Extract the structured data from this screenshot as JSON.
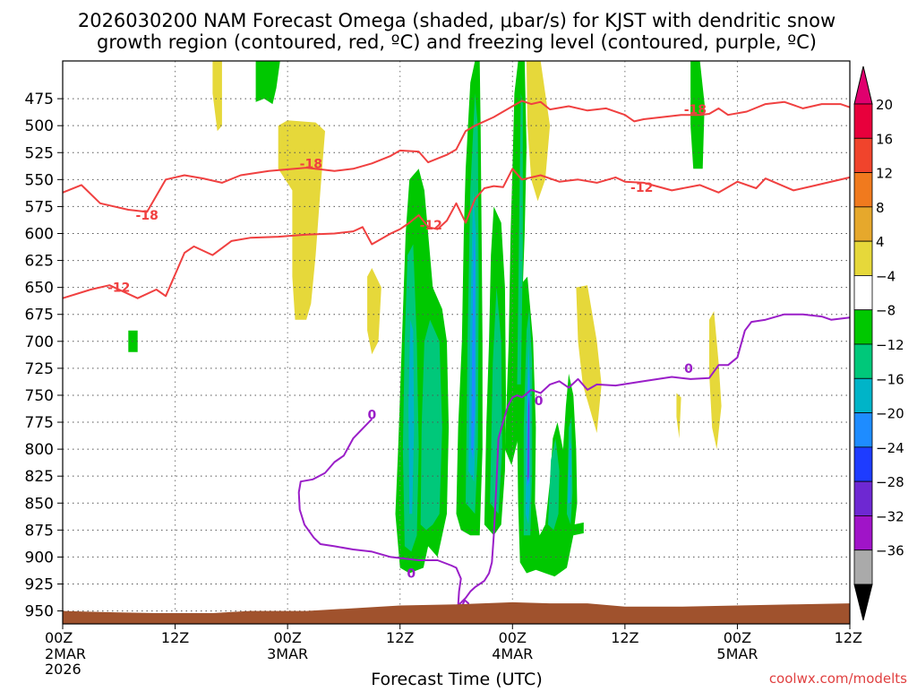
{
  "chart_data": {
    "type": "heatmap",
    "title_line1": "2026030200 NAM Forecast Omega (shaded, μbar/s) for KJST with dendritic snow",
    "title_line2": "growth region (contoured, red, ºC) and freezing level (contoured, purple, ºC)",
    "xlabel": "Forecast Time (UTC)",
    "watermark": "coolwx.com/modelts",
    "x_range_hours": [
      0,
      84
    ],
    "y_range_mb": [
      440,
      962
    ],
    "y_ticks": [
      475,
      500,
      525,
      550,
      575,
      600,
      625,
      650,
      675,
      700,
      725,
      750,
      775,
      800,
      825,
      850,
      875,
      900,
      925,
      950
    ],
    "x_ticks": [
      {
        "hour": 0,
        "line1": "00Z",
        "line2": "2MAR",
        "line3": "2026"
      },
      {
        "hour": 12,
        "line1": "12Z",
        "line2": "",
        "line3": ""
      },
      {
        "hour": 24,
        "line1": "00Z",
        "line2": "3MAR",
        "line3": ""
      },
      {
        "hour": 36,
        "line1": "12Z",
        "line2": "",
        "line3": ""
      },
      {
        "hour": 48,
        "line1": "00Z",
        "line2": "4MAR",
        "line3": ""
      },
      {
        "hour": 60,
        "line1": "12Z",
        "line2": "",
        "line3": ""
      },
      {
        "hour": 72,
        "line1": "00Z",
        "line2": "5MAR",
        "line3": ""
      },
      {
        "hour": 84,
        "line1": "12Z",
        "line2": "",
        "line3": ""
      }
    ],
    "colorbar": {
      "labels": [
        "20",
        "16",
        "12",
        "8",
        "4",
        "−4",
        "−8",
        "−12",
        "−16",
        "−20",
        "−24",
        "−28",
        "−32",
        "−36"
      ],
      "colors": [
        "#e8003c",
        "#f0442c",
        "#f07a1e",
        "#e6a82c",
        "#e6d83a",
        "#ffffff",
        "#00c800",
        "#00c87a",
        "#00b4c8",
        "#1e8cff",
        "#1e3cff",
        "#6e28d2",
        "#a014c8",
        "#aaaaaa"
      ],
      "top_arrow_color": "#e0006e",
      "bottom_arrow_color": "#000000"
    },
    "colors": {
      "red_contour": "#f04040",
      "purple_contour": "#9a1ec8",
      "ground": "#a0522d",
      "yellow": "#e6d83a",
      "green": "#00c800",
      "seagreen": "#00c87a",
      "cyan": "#00b4c8",
      "blue": "#1e8cff",
      "purple": "#8020d0"
    },
    "contour_labels": [
      "-18",
      "-12",
      "0"
    ],
    "contour_m18": [
      [
        0,
        562
      ],
      [
        2,
        555
      ],
      [
        4,
        572
      ],
      [
        7,
        578
      ],
      [
        9,
        580
      ],
      [
        11,
        550
      ],
      [
        13,
        546
      ],
      [
        15,
        549
      ],
      [
        17,
        553
      ],
      [
        19,
        546
      ],
      [
        22,
        542
      ],
      [
        26,
        539
      ],
      [
        29,
        542
      ],
      [
        31,
        540
      ],
      [
        33,
        535
      ],
      [
        35,
        528
      ],
      [
        36,
        523
      ],
      [
        38,
        524
      ],
      [
        39,
        534
      ],
      [
        41,
        527
      ],
      [
        42,
        522
      ],
      [
        43,
        505
      ],
      [
        44,
        500
      ],
      [
        46,
        492
      ],
      [
        48,
        482
      ],
      [
        49,
        477
      ],
      [
        50,
        480
      ],
      [
        51,
        478
      ],
      [
        52,
        485
      ],
      [
        54,
        482
      ],
      [
        56,
        486
      ],
      [
        58,
        484
      ],
      [
        60,
        490
      ],
      [
        61,
        496
      ],
      [
        62,
        494
      ],
      [
        64,
        492
      ],
      [
        66,
        490
      ],
      [
        68,
        490
      ],
      [
        69,
        489
      ],
      [
        70,
        484
      ],
      [
        71,
        490
      ],
      [
        73,
        487
      ],
      [
        75,
        480
      ],
      [
        77,
        478
      ],
      [
        79,
        484
      ],
      [
        81,
        480
      ],
      [
        83,
        480
      ],
      [
        84,
        483
      ]
    ],
    "contour_m12": [
      [
        0,
        660
      ],
      [
        3,
        652
      ],
      [
        5,
        648
      ],
      [
        8,
        660
      ],
      [
        10,
        652
      ],
      [
        11,
        658
      ],
      [
        13,
        618
      ],
      [
        14,
        612
      ],
      [
        16,
        620
      ],
      [
        18,
        607
      ],
      [
        20,
        604
      ],
      [
        23,
        603
      ],
      [
        26,
        601
      ],
      [
        29,
        600
      ],
      [
        31,
        598
      ],
      [
        32,
        594
      ],
      [
        33,
        610
      ],
      [
        34,
        605
      ],
      [
        35,
        600
      ],
      [
        36,
        596
      ],
      [
        37,
        590
      ],
      [
        38,
        583
      ],
      [
        39,
        594
      ],
      [
        40,
        596
      ],
      [
        41,
        588
      ],
      [
        42,
        572
      ],
      [
        43,
        590
      ],
      [
        44,
        568
      ],
      [
        45,
        558
      ],
      [
        46,
        556
      ],
      [
        47,
        557
      ],
      [
        48,
        540
      ],
      [
        49,
        550
      ],
      [
        51,
        546
      ],
      [
        53,
        552
      ],
      [
        55,
        550
      ],
      [
        57,
        553
      ],
      [
        59,
        548
      ],
      [
        60,
        552
      ],
      [
        62,
        553
      ],
      [
        65,
        560
      ],
      [
        68,
        555
      ],
      [
        70,
        562
      ],
      [
        72,
        552
      ],
      [
        74,
        558
      ],
      [
        75,
        549
      ],
      [
        78,
        560
      ],
      [
        80,
        556
      ],
      [
        84,
        548
      ]
    ],
    "contour_0": [
      [
        33,
        772
      ],
      [
        31,
        790
      ],
      [
        30,
        806
      ],
      [
        29,
        812
      ],
      [
        28,
        822
      ],
      [
        26.7,
        828
      ],
      [
        25.4,
        830
      ],
      [
        25.2,
        840
      ],
      [
        25.3,
        856
      ],
      [
        25.8,
        870
      ],
      [
        26.8,
        882
      ],
      [
        27.5,
        888
      ],
      [
        29,
        890
      ],
      [
        31,
        893
      ],
      [
        33,
        895
      ],
      [
        35,
        900
      ],
      [
        38,
        903
      ],
      [
        40,
        903
      ],
      [
        41.5,
        908
      ],
      [
        42,
        910
      ],
      [
        42.5,
        920
      ],
      [
        42.3,
        932
      ],
      [
        42.2,
        945
      ],
      [
        43,
        938
      ],
      [
        43.5,
        932
      ],
      [
        44,
        928
      ],
      [
        44.5,
        925
      ],
      [
        45,
        922
      ],
      [
        45.5,
        915
      ],
      [
        45.8,
        905
      ],
      [
        46,
        880
      ],
      [
        46.3,
        830
      ],
      [
        46.5,
        790
      ],
      [
        47,
        775
      ],
      [
        47.5,
        760
      ],
      [
        48,
        752
      ],
      [
        48.5,
        750
      ],
      [
        49,
        752
      ],
      [
        50,
        745
      ],
      [
        51,
        748
      ],
      [
        52,
        740
      ],
      [
        53,
        737
      ],
      [
        54,
        743
      ],
      [
        55,
        735
      ],
      [
        56,
        745
      ],
      [
        57,
        740
      ],
      [
        59,
        741
      ],
      [
        62,
        737
      ],
      [
        65,
        733
      ],
      [
        67,
        735
      ],
      [
        69,
        734
      ],
      [
        70,
        722
      ],
      [
        71,
        722
      ],
      [
        72,
        715
      ],
      [
        72.8,
        690
      ],
      [
        73.5,
        682
      ],
      [
        75,
        680
      ],
      [
        77,
        675
      ],
      [
        79,
        675
      ],
      [
        81,
        677
      ],
      [
        82,
        680
      ],
      [
        84,
        678
      ]
    ],
    "contour_0_inner_loop": [
      [
        42.6,
        946
      ],
      [
        42.9,
        940
      ],
      [
        43.3,
        943
      ],
      [
        42.9,
        950
      ]
    ]
  }
}
